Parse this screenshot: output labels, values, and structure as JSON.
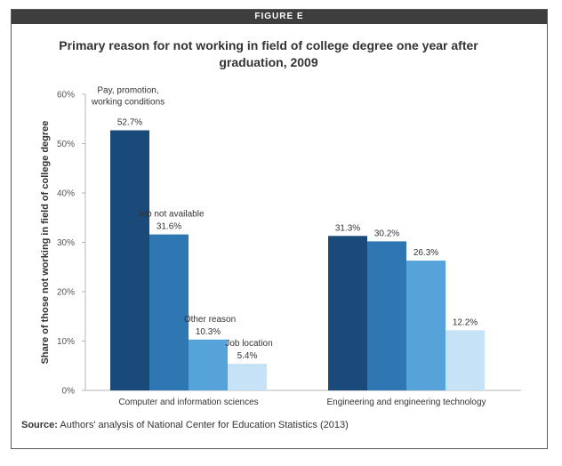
{
  "figure_label": "FIGURE E",
  "source": {
    "label": "Source:",
    "text": "Authors' analysis of National Center for Education Statistics (2013)"
  },
  "colors": {
    "series": [
      "#1a4a7a",
      "#2f77b3",
      "#56a3da",
      "#c5e2f6"
    ],
    "axis": "#b5b5b5",
    "text": "#333333"
  },
  "chart_data": {
    "type": "bar",
    "title": "Primary reason for not working in field of college degree one year after graduation, 2009",
    "ylabel": "Share of those not working in field of college degree",
    "xlabel": "",
    "ylim": [
      0,
      60
    ],
    "yticks": [
      "0%",
      "10%",
      "20%",
      "30%",
      "40%",
      "50%",
      "60%"
    ],
    "grid": false,
    "categories": [
      "Computer and information sciences",
      "Engineering and engineering technology"
    ],
    "series": [
      {
        "name": "Pay, promotion, working conditions",
        "values": [
          52.7,
          31.3
        ],
        "labels": [
          "52.7%",
          "31.3%"
        ]
      },
      {
        "name": "Job not available",
        "values": [
          31.6,
          30.2
        ],
        "labels": [
          "31.6%",
          "30.2%"
        ]
      },
      {
        "name": "Other reason",
        "values": [
          10.3,
          26.3
        ],
        "labels": [
          "10.3%",
          "26.3%"
        ]
      },
      {
        "name": "Job location",
        "values": [
          5.4,
          12.2
        ],
        "labels": [
          "5.4%",
          "12.2%"
        ]
      }
    ]
  }
}
